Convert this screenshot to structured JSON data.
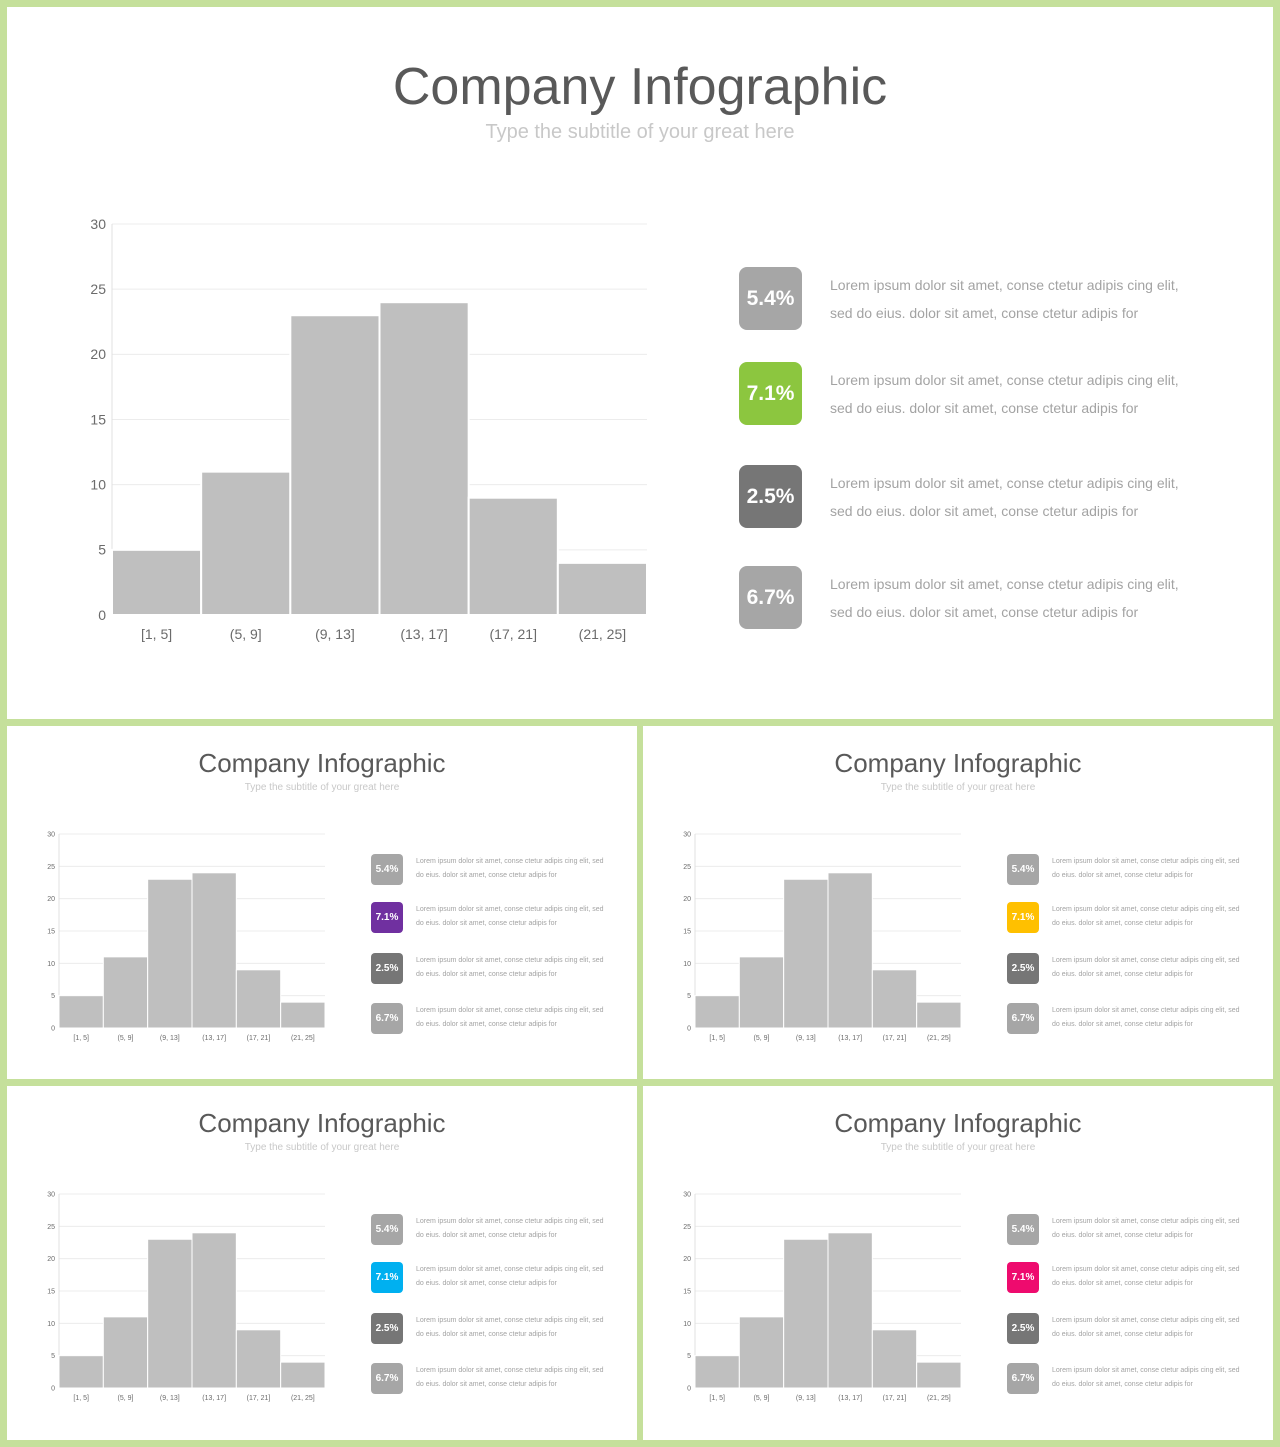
{
  "title": "Company Infographic",
  "subtitle": "Type the subtitle of your great here",
  "chart_data": {
    "type": "bar",
    "categories": [
      "[1, 5]",
      "(5, 9]",
      "(9, 13]",
      "(13, 17]",
      "(17, 21]",
      "(21, 25]"
    ],
    "values": [
      5,
      11,
      23,
      24,
      9,
      4
    ],
    "ylim": [
      0,
      30
    ],
    "yticks": [
      0,
      5,
      10,
      15,
      20,
      25,
      30
    ],
    "bar_color": "#bfbfbf",
    "grid": true
  },
  "stats": [
    {
      "value": "5.4%",
      "text": "Lorem ipsum dolor sit amet, conse ctetur adipis cing elit, sed do eius. dolor sit amet, conse ctetur adipis for",
      "color": "#a6a6a6"
    },
    {
      "value": "7.1%",
      "text": "Lorem ipsum dolor sit amet, conse ctetur adipis cing elit, sed do eius. dolor sit amet, conse ctetur adipis for",
      "color": "#8cc63f"
    },
    {
      "value": "2.5%",
      "text": "Lorem ipsum dolor sit amet, conse ctetur adipis cing elit, sed do eius. dolor sit amet, conse ctetur adipis for",
      "color": "#767676"
    },
    {
      "value": "6.7%",
      "text": "Lorem ipsum dolor sit amet, conse ctetur adipis cing elit, sed do eius. dolor sit amet, conse ctetur adipis for",
      "color": "#a6a6a6"
    }
  ],
  "variant_accents": [
    "#7030a0",
    "#ffc000",
    "#00b0f0",
    "#ee0b6e"
  ]
}
